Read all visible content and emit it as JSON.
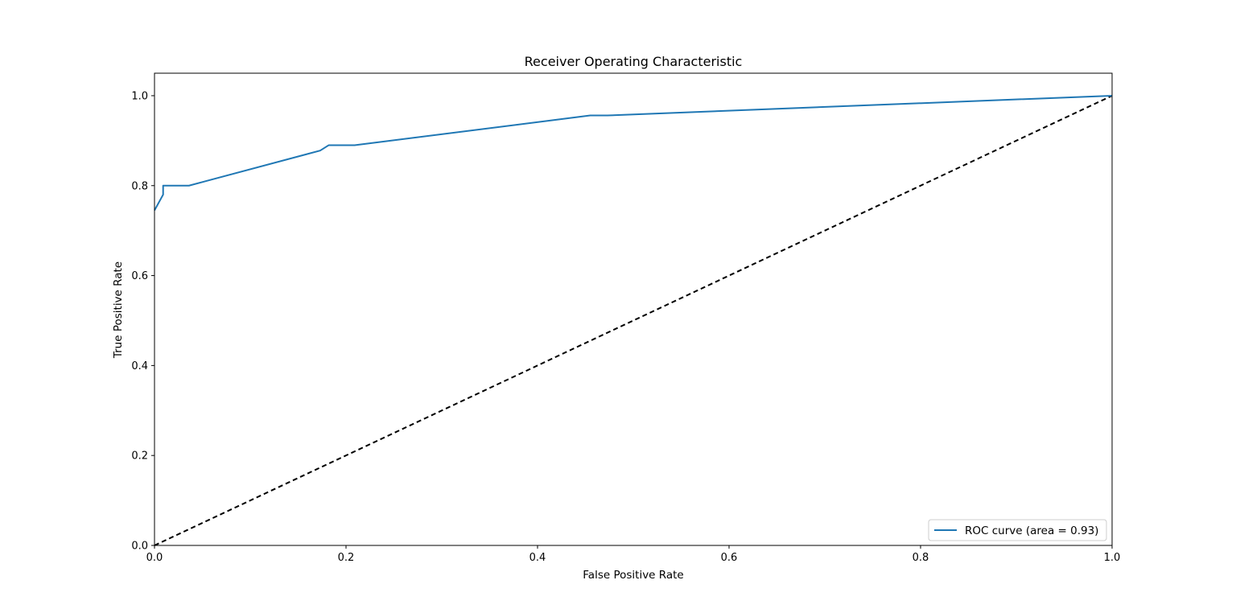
{
  "chart_data": {
    "type": "line",
    "title": "Receiver Operating Characteristic",
    "xlabel": "False Positive Rate",
    "ylabel": "True Positive Rate",
    "xlim": [
      0.0,
      1.0
    ],
    "ylim": [
      0.0,
      1.05
    ],
    "x_ticks": [
      "0.0",
      "0.2",
      "0.4",
      "0.6",
      "0.8",
      "1.0"
    ],
    "y_ticks": [
      "0.0",
      "0.2",
      "0.4",
      "0.6",
      "0.8",
      "1.0"
    ],
    "grid": false,
    "legend_placement": "lower-right",
    "series": [
      {
        "name": "ROC curve (area = 0.93)",
        "color": "#1f77b4",
        "line_style": "solid",
        "x": [
          0.0,
          0.009,
          0.009,
          0.036,
          0.173,
          0.182,
          0.209,
          0.455,
          0.473,
          1.0
        ],
        "y": [
          0.745,
          0.78,
          0.8,
          0.8,
          0.878,
          0.89,
          0.89,
          0.956,
          0.956,
          1.0
        ]
      },
      {
        "name": "",
        "color": "#000000",
        "line_style": "dashed",
        "x": [
          0.0,
          1.0
        ],
        "y": [
          0.0,
          1.0
        ]
      }
    ]
  }
}
